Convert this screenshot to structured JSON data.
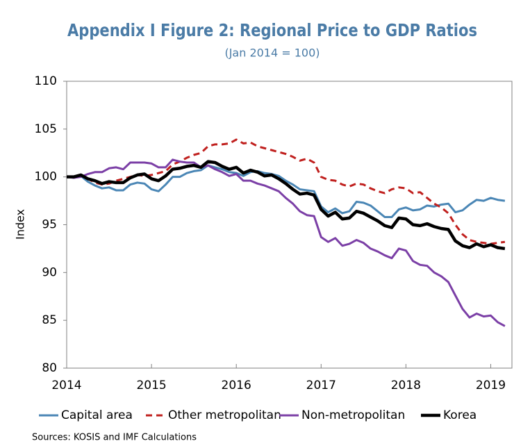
{
  "chart_data": {
    "type": "line",
    "title": "Appendix I Figure 2: Regional Price to GDP Ratios",
    "subtitle": "(Jan 2014 = 100)",
    "y_label": "Index",
    "source": "Sources: KOSIS and IMF Calculations",
    "legend": "bottom",
    "grid": false,
    "xlim": [
      2014,
      2019.25
    ],
    "xticks": [
      2014,
      2015,
      2016,
      2017,
      2018,
      2019
    ],
    "ylim": [
      80,
      110
    ],
    "yticks": [
      80,
      85,
      90,
      95,
      100,
      105,
      110
    ],
    "x": [
      2014,
      2014.083,
      2014.167,
      2014.25,
      2014.333,
      2014.417,
      2014.5,
      2014.583,
      2014.667,
      2014.75,
      2014.833,
      2014.917,
      2015,
      2015.083,
      2015.167,
      2015.25,
      2015.333,
      2015.417,
      2015.5,
      2015.583,
      2015.667,
      2015.75,
      2015.833,
      2015.917,
      2016,
      2016.083,
      2016.167,
      2016.25,
      2016.333,
      2016.417,
      2016.5,
      2016.583,
      2016.667,
      2016.75,
      2016.833,
      2016.917,
      2017,
      2017.083,
      2017.167,
      2017.25,
      2017.333,
      2017.417,
      2017.5,
      2017.583,
      2017.667,
      2017.75,
      2017.833,
      2017.917,
      2018,
      2018.083,
      2018.167,
      2018.25,
      2018.333,
      2018.417,
      2018.5,
      2018.583,
      2018.667,
      2018.75,
      2018.833,
      2018.917,
      2019,
      2019.083,
      2019.167
    ],
    "series": [
      {
        "name": "Capital area",
        "color": "#4a86b5",
        "dash": false,
        "width": 3,
        "values": [
          100,
          100,
          100.1,
          99.5,
          99.1,
          98.8,
          98.9,
          98.6,
          98.6,
          99.2,
          99.4,
          99.3,
          98.7,
          98.5,
          99.2,
          100,
          100,
          100.4,
          100.6,
          100.7,
          101.2,
          101,
          100.8,
          100.5,
          100.4,
          100.1,
          100.5,
          100.6,
          100.4,
          100.3,
          100.1,
          99.6,
          99.2,
          98.7,
          98.6,
          98.5,
          96.9,
          96.3,
          96.7,
          96.2,
          96.4,
          97.4,
          97.3,
          97,
          96.4,
          95.8,
          95.8,
          96.6,
          96.8,
          96.5,
          96.6,
          97,
          96.9,
          97.1,
          97.2,
          96.3,
          96.5,
          97.1,
          97.6,
          97.5,
          97.8,
          97.6,
          97.5
        ]
      },
      {
        "name": "Other metropolitan",
        "color": "#c0201e",
        "dash": true,
        "width": 3,
        "values": [
          100,
          100,
          100.1,
          99.8,
          99.4,
          99.2,
          99.3,
          99.6,
          99.8,
          100,
          100.2,
          100.1,
          100.2,
          100.4,
          100.6,
          101.3,
          101.6,
          102,
          102.3,
          102.5,
          103.2,
          103.4,
          103.4,
          103.5,
          103.9,
          103.5,
          103.6,
          103.2,
          103,
          102.8,
          102.6,
          102.4,
          102.1,
          101.7,
          101.9,
          101.5,
          100,
          99.7,
          99.6,
          99.2,
          99,
          99.3,
          99.2,
          98.8,
          98.5,
          98.3,
          98.7,
          98.9,
          98.8,
          98.3,
          98.4,
          97.8,
          97.2,
          96.8,
          96.2,
          95,
          94,
          93.4,
          93.2,
          93.1,
          93,
          93.1,
          93.2
        ]
      },
      {
        "name": "Non-metropolitan",
        "color": "#7b3fa6",
        "dash": false,
        "width": 3,
        "values": [
          100,
          99.9,
          100,
          100.3,
          100.5,
          100.5,
          100.9,
          101,
          100.8,
          101.5,
          101.5,
          101.5,
          101.4,
          101,
          101,
          101.8,
          101.6,
          101.5,
          101.5,
          101,
          101.2,
          100.8,
          100.5,
          100.1,
          100.3,
          99.6,
          99.6,
          99.3,
          99.1,
          98.8,
          98.5,
          97.8,
          97.2,
          96.4,
          96,
          95.9,
          93.7,
          93.2,
          93.6,
          92.8,
          93,
          93.4,
          93.1,
          92.5,
          92.2,
          91.8,
          91.5,
          92.5,
          92.3,
          91.2,
          90.8,
          90.7,
          90,
          89.6,
          89,
          87.6,
          86.2,
          85.3,
          85.7,
          85.4,
          85.5,
          84.8,
          84.4
        ]
      },
      {
        "name": "Korea",
        "color": "#000000",
        "dash": false,
        "width": 4.5,
        "values": [
          100,
          100,
          100.2,
          99.8,
          99.6,
          99.3,
          99.5,
          99.4,
          99.4,
          99.9,
          100.2,
          100.3,
          99.8,
          99.6,
          100.1,
          100.8,
          100.9,
          101.1,
          101.2,
          101,
          101.6,
          101.5,
          101.1,
          100.8,
          101,
          100.4,
          100.7,
          100.5,
          100.1,
          100.2,
          99.8,
          99.3,
          98.7,
          98.2,
          98.3,
          98.1,
          96.6,
          95.9,
          96.3,
          95.6,
          95.7,
          96.4,
          96.2,
          95.8,
          95.4,
          94.9,
          94.7,
          95.7,
          95.6,
          95,
          94.9,
          95.1,
          94.8,
          94.6,
          94.5,
          93.3,
          92.8,
          92.6,
          93,
          92.7,
          92.9,
          92.6,
          92.5
        ]
      }
    ]
  }
}
